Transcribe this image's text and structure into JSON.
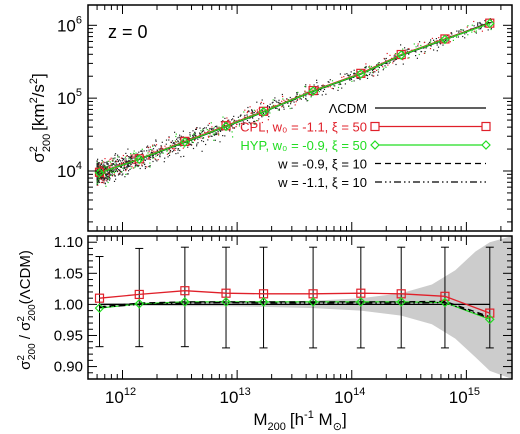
{
  "colors": {
    "lcdm": "#000000",
    "cpl": "#e0202a",
    "hyp": "#22dd22",
    "band": "#cccccc",
    "scatter_red": "#e0202a",
    "scatter_green": "#22cc22"
  },
  "chart_data": [
    {
      "type": "scatter",
      "panel": "top",
      "annotation": "z = 0",
      "ylabel_main": "σ",
      "ylabel_sup": "2",
      "ylabel_sub": "200",
      "ylabel_unit_open": "[km",
      "ylabel_unit_sup1": "2",
      "ylabel_unit_mid": "/s",
      "ylabel_unit_sup2": "2",
      "ylabel_unit_close": "]",
      "xscale": "log",
      "yscale": "log",
      "xlim": [
        500000000000.0,
        2500000000000000.0
      ],
      "ylim": [
        1500,
        1900000.0
      ],
      "yticks": [
        {
          "value": 10000.0,
          "base": "10",
          "exp": "4"
        },
        {
          "value": 100000.0,
          "base": "10",
          "exp": "5"
        },
        {
          "value": 1000000.0,
          "base": "10",
          "exp": "6"
        }
      ],
      "legend_position": "lower-right",
      "legend": [
        {
          "label": "ΛCDM",
          "color": "#000000",
          "style": "solid",
          "marker": "none"
        },
        {
          "label": "CPL, w₀ = -1.1, ξ = 50",
          "color": "#e0202a",
          "style": "solid",
          "marker": "square"
        },
        {
          "label": "HYP, w₀ = -0.9, ξ = 50",
          "color": "#22dd22",
          "style": "solid",
          "marker": "diamond"
        },
        {
          "label": "w = -0.9, ξ = 10",
          "color": "#000000",
          "style": "dashed",
          "marker": "none"
        },
        {
          "label": "w = -1.1, ξ = 10",
          "color": "#000000",
          "style": "dashdotdot",
          "marker": "none"
        }
      ],
      "series": [
        {
          "name": "ΛCDM",
          "x": [
            630000000000.0,
            1400000000000.0,
            3500000000000.0,
            8000000000000.0,
            17000000000000.0,
            46000000000000.0,
            120000000000000.0,
            270000000000000.0,
            650000000000000.0,
            1600000000000000.0
          ],
          "values": [
            9500,
            14500,
            25000,
            41000,
            65000,
            125000,
            215000,
            390000,
            640000,
            1080000
          ]
        },
        {
          "name": "CPL",
          "x": [
            630000000000.0,
            1400000000000.0,
            3500000000000.0,
            8000000000000.0,
            17000000000000.0,
            46000000000000.0,
            120000000000000.0,
            270000000000000.0,
            650000000000000.0,
            1600000000000000.0
          ],
          "values": [
            9600,
            14700,
            25500,
            41800,
            66000,
            127000,
            219000,
            397000,
            650000,
            1070000
          ]
        },
        {
          "name": "HYP",
          "x": [
            630000000000.0,
            1400000000000.0,
            3500000000000.0,
            8000000000000.0,
            17000000000000.0,
            46000000000000.0,
            120000000000000.0,
            270000000000000.0,
            650000000000000.0,
            1600000000000000.0
          ],
          "values": [
            9450,
            14500,
            25000,
            41000,
            65000,
            125000,
            215000,
            390000,
            640000,
            1060000
          ]
        }
      ]
    },
    {
      "type": "line",
      "panel": "bottom",
      "xlabel_main": "M",
      "xlabel_sub": "200",
      "xlabel_unit_open": "[h",
      "xlabel_unit_sup": "-1",
      "xlabel_unit_mid": " M",
      "xlabel_unit_sub": "⊙",
      "xlabel_unit_close": "]",
      "ylabel_num_main": "σ",
      "ylabel_num_sup": "2",
      "ylabel_num_sub": "200",
      "ylabel_sep": " / ",
      "ylabel_den_main": "σ",
      "ylabel_den_sup": "2",
      "ylabel_den_sub": "200",
      "ylabel_den_arg": "(ΛCDM)",
      "xscale": "log",
      "xlim": [
        500000000000.0,
        2500000000000000.0
      ],
      "ylim": [
        0.88,
        1.11
      ],
      "xticks": [
        {
          "value": 1000000000000.0,
          "base": "10",
          "exp": "12"
        },
        {
          "value": 10000000000000.0,
          "base": "10",
          "exp": "13"
        },
        {
          "value": 100000000000000.0,
          "base": "10",
          "exp": "14"
        },
        {
          "value": 1000000000000000.0,
          "base": "10",
          "exp": "15"
        }
      ],
      "yticks": [
        {
          "value": 0.9,
          "label": "0.90"
        },
        {
          "value": 0.95,
          "label": "0.95"
        },
        {
          "value": 1.0,
          "label": "1.00"
        },
        {
          "value": 1.05,
          "label": "1.05"
        },
        {
          "value": 1.1,
          "label": "1.10"
        }
      ],
      "x": [
        630000000000.0,
        1400000000000.0,
        3500000000000.0,
        8000000000000.0,
        17000000000000.0,
        46000000000000.0,
        120000000000000.0,
        270000000000000.0,
        650000000000000.0,
        1600000000000000.0
      ],
      "series": [
        {
          "name": "ΛCDM",
          "values": [
            1.0,
            1.0,
            1.0,
            1.0,
            1.0,
            1.0,
            1.0,
            1.0,
            1.0,
            1.0
          ]
        },
        {
          "name": "CPL",
          "values": [
            1.01,
            1.016,
            1.022,
            1.018,
            1.017,
            1.017,
            1.018,
            1.017,
            1.013,
            0.986
          ]
        },
        {
          "name": "HYP",
          "values": [
            0.994,
            1.001,
            1.004,
            1.004,
            1.004,
            1.004,
            1.004,
            1.004,
            1.003,
            0.976
          ]
        },
        {
          "name": "w = -0.9, ξ = 10",
          "values": [
            0.996,
            1.002,
            1.004,
            1.004,
            1.004,
            1.004,
            1.004,
            1.004,
            1.005,
            0.98
          ]
        },
        {
          "name": "w = -1.1, ξ = 10",
          "values": [
            0.995,
            1.0,
            1.002,
            1.003,
            1.002,
            1.002,
            1.002,
            1.002,
            1.003,
            0.978
          ]
        }
      ],
      "error_bars": [
        {
          "low": 0.932,
          "high": 1.077
        },
        {
          "low": 0.932,
          "high": 1.09
        },
        {
          "low": 0.932,
          "high": 1.092
        },
        {
          "low": 0.93,
          "high": 1.092
        },
        {
          "low": 0.93,
          "high": 1.092
        },
        {
          "low": 0.93,
          "high": 1.092
        },
        {
          "low": 0.93,
          "high": 1.092
        },
        {
          "low": 0.93,
          "high": 1.092
        },
        {
          "low": 0.93,
          "high": 1.092
        },
        {
          "low": 0.93,
          "high": 1.092
        }
      ],
      "band": {
        "x": [
          630000000000.0,
          1400000000000.0,
          3500000000000.0,
          8000000000000.0,
          17000000000000.0,
          46000000000000.0,
          120000000000000.0,
          270000000000000.0,
          500000000000000.0,
          800000000000000.0,
          1200000000000000.0,
          1600000000000000.0,
          2500000000000000.0
        ],
        "low": [
          0.998,
          0.998,
          0.997,
          0.997,
          0.996,
          0.994,
          0.99,
          0.982,
          0.968,
          0.945,
          0.915,
          0.893,
          0.88
        ],
        "high": [
          1.002,
          1.002,
          1.003,
          1.003,
          1.004,
          1.006,
          1.01,
          1.018,
          1.032,
          1.055,
          1.085,
          1.1,
          1.11
        ]
      }
    }
  ]
}
